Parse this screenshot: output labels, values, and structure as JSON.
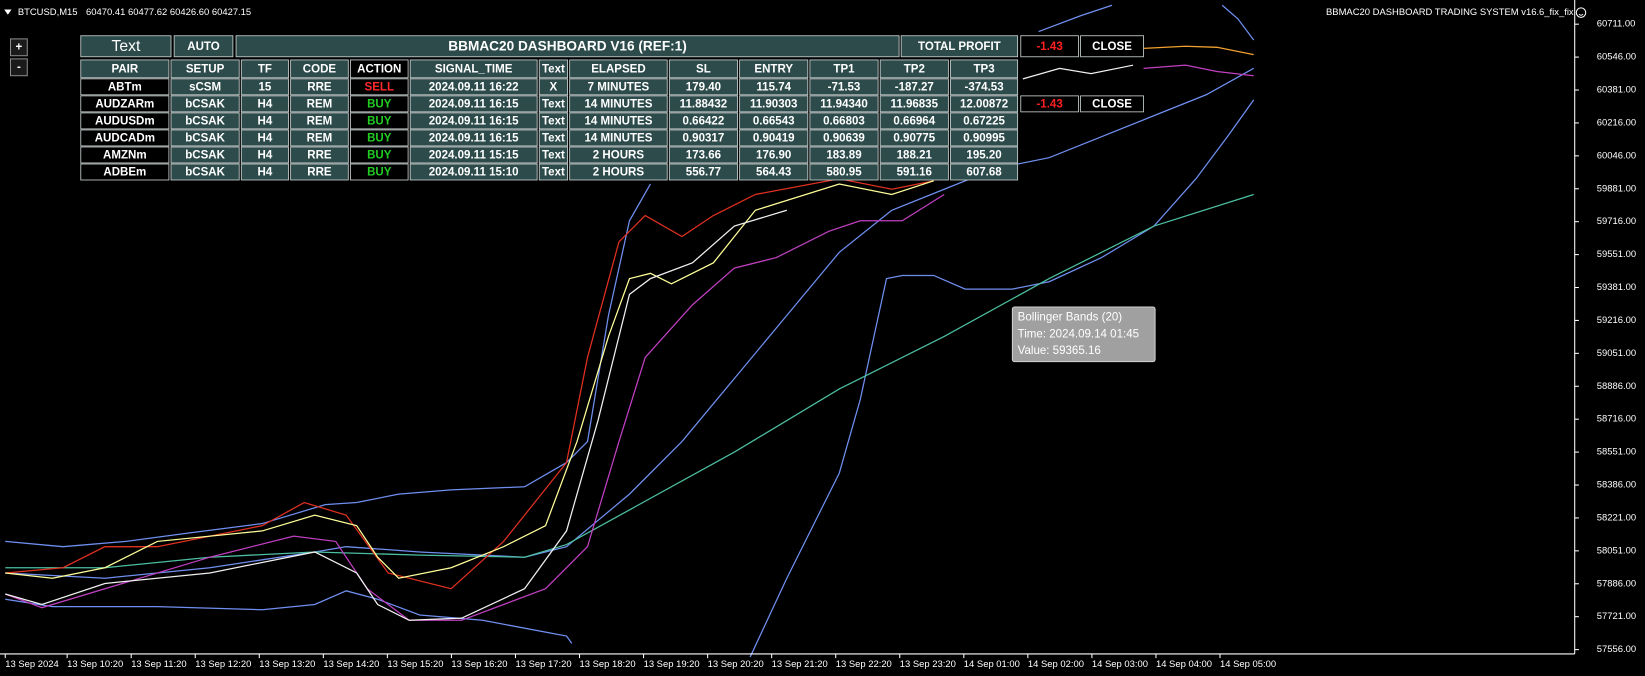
{
  "header": {
    "symbol": "BTCUSD,M15",
    "ohlc": "60470.41 60477.62 60426.60 60427.15",
    "system_title": "BBMAC20 DASHBOARD TRADING SYSTEM v16.6_fix_fix"
  },
  "zoom_buttons": [
    "+",
    "-"
  ],
  "price_axis": [
    "60711.00",
    "60546.00",
    "60381.00",
    "60216.00",
    "60046.00",
    "59881.00",
    "59716.00",
    "59551.00",
    "59381.00",
    "59216.00",
    "59051.00",
    "58886.00",
    "58716.00",
    "58551.00",
    "58386.00",
    "58221.00",
    "58051.00",
    "57886.00",
    "57721.00",
    "57556.00"
  ],
  "time_axis": [
    "13 Sep 2024",
    "13 Sep 10:20",
    "13 Sep 11:20",
    "13 Sep 12:20",
    "13 Sep 13:20",
    "13 Sep 14:20",
    "13 Sep 15:20",
    "13 Sep 16:20",
    "13 Sep 17:20",
    "13 Sep 18:20",
    "13 Sep 19:20",
    "13 Sep 20:20",
    "13 Sep 21:20",
    "13 Sep 22:20",
    "13 Sep 23:20",
    "14 Sep 01:00",
    "14 Sep 02:00",
    "14 Sep 03:00",
    "14 Sep 04:00",
    "14 Sep 05:00"
  ],
  "dashboard": {
    "top_row": [
      "Text",
      "AUTO",
      "BBMAC20 DASHBOARD V16 (REF:1)",
      "TOTAL PROFIT",
      "-1.43",
      "CLOSE"
    ],
    "columns": [
      "PAIR",
      "SETUP",
      "TF",
      "CODE",
      "ACTION",
      "SIGNAL_TIME",
      "Text",
      "ELAPSED",
      "SL",
      "ENTRY",
      "TP1",
      "TP2",
      "TP3"
    ],
    "rows": [
      [
        "ABTm",
        "sCSM",
        "15",
        "RRE",
        "SELL",
        "2024.09.11 16:22",
        "X",
        "7 MINUTES",
        "179.40",
        "115.74",
        "-71.53",
        "-187.27",
        "-374.53"
      ],
      [
        "AUDZARm",
        "bCSAK",
        "H4",
        "REM",
        "BUY",
        "2024.09.11 16:15",
        "Text",
        "14 MINUTES",
        "11.88432",
        "11.90303",
        "11.94340",
        "11.96835",
        "12.00872",
        "-1.43",
        "CLOSE"
      ],
      [
        "AUDUSDm",
        "bCSAK",
        "H4",
        "REM",
        "BUY",
        "2024.09.11 16:15",
        "Text",
        "14 MINUTES",
        "0.66422",
        "0.66543",
        "0.66803",
        "0.66964",
        "0.67225"
      ],
      [
        "AUDCADm",
        "bCSAK",
        "H4",
        "REM",
        "BUY",
        "2024.09.11 16:15",
        "Text",
        "14 MINUTES",
        "0.90317",
        "0.90419",
        "0.90639",
        "0.90775",
        "0.90995"
      ],
      [
        "AMZNm",
        "bCSAK",
        "H4",
        "RRE",
        "BUY",
        "2024.09.11 15:15",
        "Text",
        "2 HOURS",
        "173.66",
        "176.90",
        "183.89",
        "188.21",
        "195.20"
      ],
      [
        "ADBEm",
        "bCSAK",
        "H4",
        "RRE",
        "BUY",
        "2024.09.11 15:10",
        "Text",
        "2 HOURS",
        "556.77",
        "564.43",
        "580.95",
        "591.16",
        "607.68"
      ]
    ],
    "action_colors": [
      "#ff2a2a",
      "#22cc22",
      "#22cc22",
      "#22cc22",
      "#22cc22",
      "#22cc22"
    ]
  },
  "tooltip": [
    "Bollinger Bands (20)",
    "Time: 2024.09.14 01:45",
    "Value: 59365.16"
  ]
}
